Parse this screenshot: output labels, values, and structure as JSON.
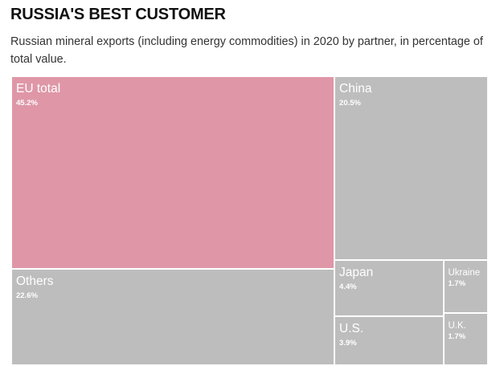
{
  "header": {
    "title": "RUSSIA'S BEST CUSTOMER",
    "subtitle": "Russian mineral exports (including energy commodities) in 2020 by partner, in percentage of total value."
  },
  "colors": {
    "highlight": "#df97a7",
    "default": "#bdbdbd",
    "label": "#ffffff",
    "border": "#ffffff"
  },
  "chart_data": {
    "type": "treemap",
    "unit": "%",
    "items": [
      {
        "label": "EU total",
        "value": 45.2,
        "value_label": "45.2%",
        "highlight": true
      },
      {
        "label": "China",
        "value": 20.5,
        "value_label": "20.5%",
        "highlight": false
      },
      {
        "label": "Others",
        "value": 22.6,
        "value_label": "22.6%",
        "highlight": false
      },
      {
        "label": "Japan",
        "value": 4.4,
        "value_label": "4.4%",
        "highlight": false
      },
      {
        "label": "Ukraine",
        "value": 1.7,
        "value_label": "1.7%",
        "highlight": false
      },
      {
        "label": "U.S.",
        "value": 3.9,
        "value_label": "3.9%",
        "highlight": false
      },
      {
        "label": "U.K.",
        "value": 1.7,
        "value_label": "1.7%",
        "highlight": false
      }
    ]
  }
}
